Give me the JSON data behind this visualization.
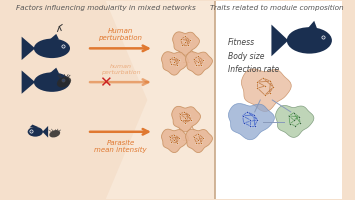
{
  "bg_color": "#f5e0cc",
  "left_bg": "#f5e0cc",
  "right_bg": "#ffffff",
  "title_left": "Factors influencing modularity in mixed networks",
  "title_right": "Traits related to module composition",
  "label1": "Human\nperturbation",
  "label2": "Parasite\nmean intensity",
  "traits_text": "Fitness\nBody size\nInfection rate",
  "arrow_color": "#e07830",
  "blob_color_orange": "#e8b898",
  "blob_color_green": "#aac8a0",
  "blob_color_blue": "#90a8d0",
  "fish_color": "#1a2f50",
  "node_orange": "#c06820",
  "node_blue": "#2244aa",
  "node_green": "#336633",
  "edge_orange": "#c07840",
  "edge_blue": "#4466cc",
  "edge_green": "#559955",
  "divider_color": "#c8a888",
  "wedge_color": "#f0d4bc",
  "x_color": "#cc2222"
}
